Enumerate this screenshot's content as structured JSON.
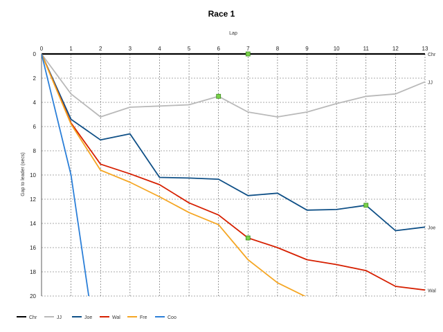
{
  "chart_data": {
    "type": "line",
    "title": "Race 1",
    "xlabel": "Lap",
    "ylabel": "Gap to leader (secs)",
    "x_ticks": [
      "0",
      "1",
      "2",
      "3",
      "4",
      "5",
      "6",
      "7",
      "8",
      "9",
      "10",
      "11",
      "12",
      "13"
    ],
    "y_ticks": [
      "0",
      "2",
      "4",
      "6",
      "8",
      "10",
      "12",
      "14",
      "16",
      "18",
      "20"
    ],
    "xlim": [
      0,
      13
    ],
    "ylim": [
      0,
      20
    ],
    "y_inverted": true,
    "x_axis_position": "top",
    "grid": true,
    "legend_position": "bottom-left",
    "series": [
      {
        "name": "Chr",
        "color": "#000000",
        "end_label": "Chr",
        "x": [
          0,
          1,
          2,
          3,
          4,
          5,
          6,
          7,
          8,
          9,
          10,
          11,
          12,
          13
        ],
        "y": [
          0,
          0,
          0,
          0,
          0,
          0,
          0,
          0,
          0,
          0,
          0,
          0,
          0,
          0
        ]
      },
      {
        "name": "JJ",
        "color": "#b9b9b9",
        "end_label": "JJ",
        "x": [
          0,
          1,
          2,
          3,
          4,
          5,
          6,
          7,
          8,
          9,
          10,
          11,
          12,
          13
        ],
        "y": [
          0,
          3.3,
          5.2,
          4.4,
          4.3,
          4.2,
          3.5,
          4.8,
          5.2,
          4.8,
          4.1,
          3.5,
          3.3,
          2.3
        ]
      },
      {
        "name": "Joe",
        "color": "#0e4f86",
        "end_label": "Joe",
        "x": [
          0,
          1,
          2,
          3,
          4,
          5,
          6,
          7,
          8,
          9,
          10,
          11,
          12,
          13
        ],
        "y": [
          0,
          5.4,
          7.1,
          6.6,
          10.2,
          10.25,
          10.35,
          11.7,
          11.5,
          12.9,
          12.85,
          12.5,
          14.6,
          14.3
        ]
      },
      {
        "name": "Wal",
        "color": "#d61f00",
        "end_label": "Wal",
        "x": [
          0,
          1,
          2,
          3,
          4,
          5,
          6,
          7,
          8,
          9,
          10,
          11,
          12,
          13
        ],
        "y": [
          0,
          5.7,
          9.1,
          9.9,
          10.8,
          12.3,
          13.3,
          15.2,
          16.0,
          17.0,
          17.4,
          17.9,
          19.2,
          19.5
        ]
      },
      {
        "name": "Fre",
        "color": "#f5a623",
        "end_label": "",
        "x": [
          0,
          1,
          2,
          3,
          4,
          5,
          6,
          7,
          8,
          9
        ],
        "y": [
          0,
          5.8,
          9.6,
          10.6,
          11.8,
          13.1,
          14.1,
          17.0,
          18.9,
          20.1
        ]
      },
      {
        "name": "Coo",
        "color": "#2b7fd8",
        "end_label": "",
        "x": [
          0,
          1,
          1.6
        ],
        "y": [
          0,
          10.0,
          20.0
        ]
      }
    ],
    "markers": [
      {
        "x": 7,
        "y": 0
      },
      {
        "x": 6,
        "y": 3.5
      },
      {
        "x": 11,
        "y": 12.5
      },
      {
        "x": 7,
        "y": 15.2
      }
    ],
    "marker_color": "#7ad14a"
  }
}
